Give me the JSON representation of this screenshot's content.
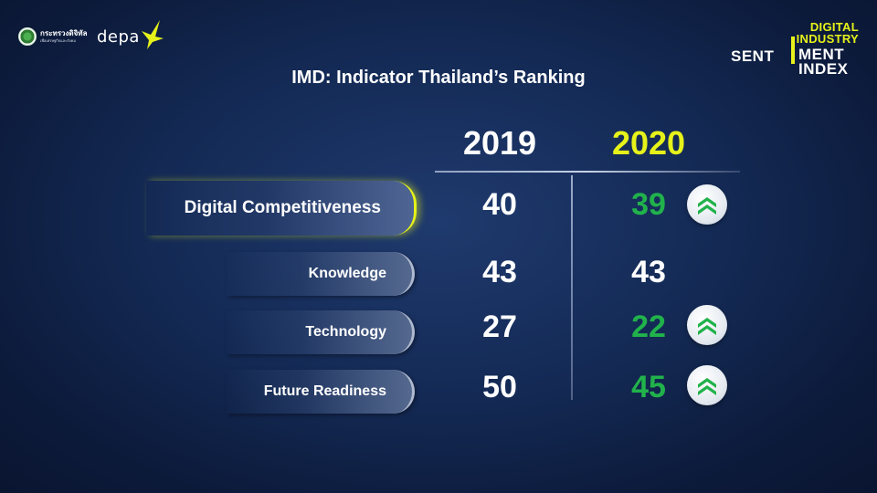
{
  "header": {
    "ministry_name": "กระทรวงดิจิทัล",
    "ministry_sub": "เพื่อเศรษฐกิจและสังคม",
    "depa_label": "depa",
    "ddsi": {
      "line1": "DIGITAL",
      "line2": "INDUSTRY",
      "line3a": "SENT",
      "line3b": "MENT",
      "line4": "INDEX"
    }
  },
  "title": "IMD: Indicator Thailand’s Ranking",
  "columns": {
    "year_a": "2019",
    "year_b": "2020"
  },
  "rows": [
    {
      "label": "Digital Competitiveness",
      "v2019": "40",
      "v2020": "39",
      "trend": "up"
    },
    {
      "label": "Knowledge",
      "v2019": "43",
      "v2020": "43",
      "trend": "same"
    },
    {
      "label": "Technology",
      "v2019": "27",
      "v2020": "22",
      "trend": "up"
    },
    {
      "label": "Future Readiness",
      "v2019": "50",
      "v2020": "45",
      "trend": "up"
    }
  ],
  "icons": {
    "up": "chevron-up-double-icon"
  },
  "colors": {
    "accent_yellow": "#e6f21a",
    "improve_green": "#21b24b",
    "background": "#142a55"
  }
}
